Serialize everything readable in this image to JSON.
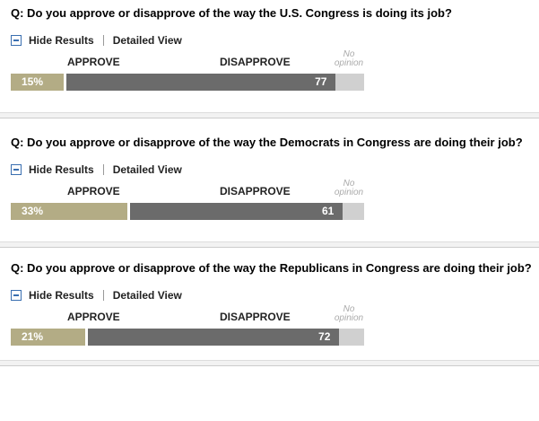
{
  "controls": {
    "hide": "Hide Results",
    "detail": "Detailed View"
  },
  "labels": {
    "approve": "APPROVE",
    "disapprove": "DISAPPROVE",
    "no_opinion": "No opinion"
  },
  "polls": [
    {
      "question": "Q: Do you approve or disapprove of the way the U.S. Congress is doing its job?",
      "approve": 15,
      "approve_label": "15%",
      "disapprove": 77,
      "no_opinion": 8
    },
    {
      "question": "Q: Do you approve or disapprove of the way the Democrats in Congress are doing their job?",
      "approve": 33,
      "approve_label": "33%",
      "disapprove": 61,
      "no_opinion": 6
    },
    {
      "question": "Q: Do you approve or disapprove of the way the Republicans in Congress are doing their job?",
      "approve": 21,
      "approve_label": "21%",
      "disapprove": 72,
      "no_opinion": 7
    }
  ]
}
